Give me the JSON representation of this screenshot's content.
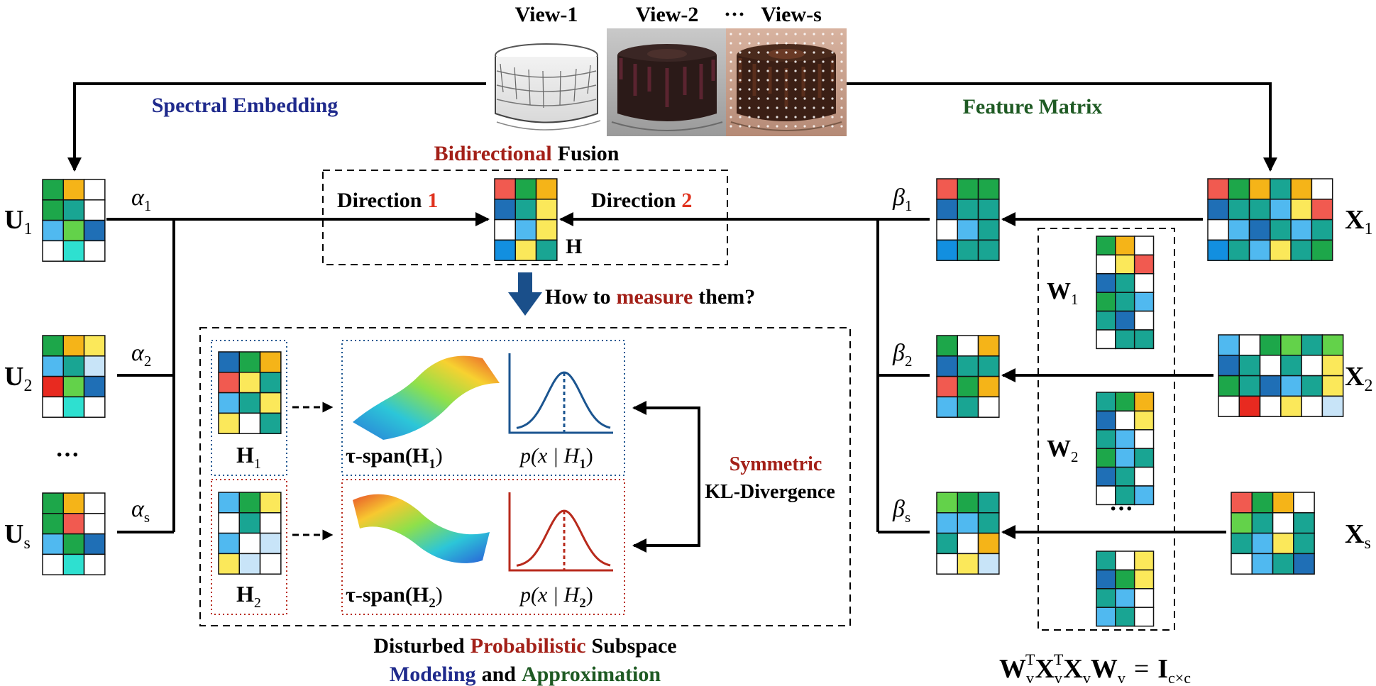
{
  "views": {
    "view1": "View-1",
    "view2": "View-2",
    "dots": "···",
    "views": "View-s"
  },
  "labels": {
    "spectral_embedding": "Spectral Embedding",
    "feature_matrix": "Feature Matrix",
    "bidirectional": "Bidirectional",
    "fusion": "Fusion",
    "direction": "Direction",
    "dir1_num": "1",
    "dir2_num": "2",
    "h": "H",
    "how_to": "How to",
    "measure": "measure",
    "them": "them?",
    "symmetric": "Symmetric",
    "kl_divergence": "KL-Divergence",
    "disturbed": "Disturbed",
    "probabilistic": "Probabilistic",
    "subspace": "Subspace",
    "modeling": "Modeling",
    "and": "and",
    "approximation": "Approximation",
    "ellipsis": "···"
  },
  "u_matrices": [
    {
      "main": "U",
      "sub": "1",
      "weight": "α",
      "weight_sub": "1"
    },
    {
      "main": "U",
      "sub": "2",
      "weight": "α",
      "weight_sub": "2"
    },
    {
      "main": "U",
      "sub": "s",
      "weight": "α",
      "weight_sub": "s"
    }
  ],
  "x_matrices": [
    {
      "main": "X",
      "sub": "1",
      "weight": "β",
      "weight_sub": "1"
    },
    {
      "main": "X",
      "sub": "2",
      "weight": "β",
      "weight_sub": "2"
    },
    {
      "main": "X",
      "sub": "s",
      "weight": "β",
      "weight_sub": "s"
    }
  ],
  "w_matrices": [
    {
      "main": "W",
      "sub": "1"
    },
    {
      "main": "W",
      "sub": "2"
    }
  ],
  "h_items": [
    {
      "main": "H",
      "sub": "1",
      "tau": "τ-span(H",
      "p": "p(x | H",
      "close": ")"
    },
    {
      "main": "H",
      "sub": "2",
      "tau": "τ-span(H",
      "p": "p(x | H",
      "close": ")"
    }
  ],
  "constraint": {
    "w": "W",
    "v": "v",
    "t": "T",
    "x": "X",
    "eq": "=",
    "i": "I",
    "cxc": "c×c"
  },
  "colors": {
    "navy": "#1f2a8c",
    "dark_green": "#1e5a23",
    "dark_red": "#a32018",
    "bright_red": "#e0321e",
    "blue_arrow": "#1a4f8a",
    "dist_blue": "#1b5590",
    "dist_red": "#b82a1c"
  }
}
